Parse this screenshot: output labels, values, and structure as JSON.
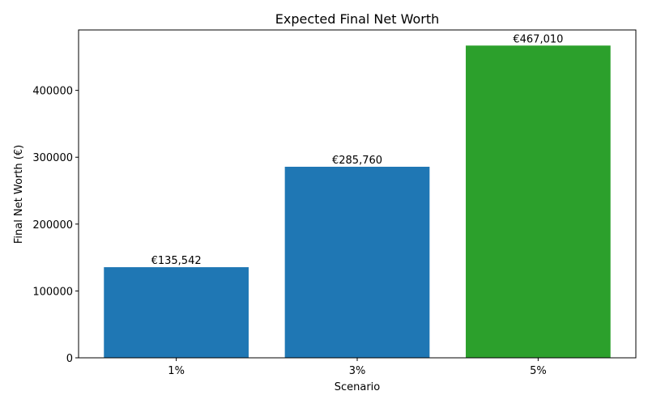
{
  "chart_data": {
    "type": "bar",
    "title": "Expected Final Net Worth",
    "xlabel": "Scenario",
    "ylabel": "Final Net Worth (€)",
    "categories": [
      "1%",
      "3%",
      "5%"
    ],
    "values": [
      135542,
      285760,
      467010
    ],
    "data_labels": [
      "€135,542",
      "€285,760",
      "€467,010"
    ],
    "colors": [
      "#1f77b4",
      "#1f77b4",
      "#2ca02c"
    ],
    "ylim": [
      0,
      490360
    ],
    "yticks": [
      0,
      100000,
      200000,
      300000,
      400000
    ],
    "ytick_labels": [
      "0",
      "100000",
      "200000",
      "300000",
      "400000"
    ],
    "grid": false,
    "legend": "none"
  }
}
